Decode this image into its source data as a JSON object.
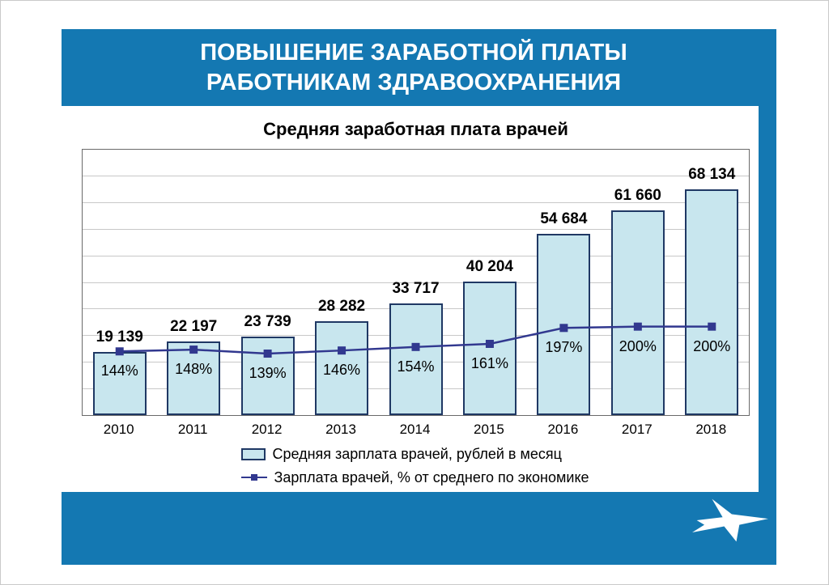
{
  "slide": {
    "title_line1": "ПОВЫШЕНИЕ ЗАРАБОТНОЙ ПЛАТЫ",
    "title_line2": "РАБОТНИКАМ ЗДРАВООХРАНЕНИЯ"
  },
  "colors": {
    "band_blue": "#1478b2",
    "bar_fill": "#c8e6ee",
    "bar_border": "#1f3864",
    "line_color": "#31388f",
    "grid_color": "#c8c8c8",
    "plot_border": "#6a6a6a",
    "text_color": "#000000"
  },
  "chart_data": {
    "type": "bar",
    "title": "Средняя заработная плата врачей",
    "categories": [
      "2010",
      "2011",
      "2012",
      "2013",
      "2014",
      "2015",
      "2016",
      "2017",
      "2018"
    ],
    "series": [
      {
        "name": "Средняя зарплата врачей, рублей в месяц",
        "type": "bar",
        "axis": "left",
        "values": [
          19139,
          22197,
          23739,
          28282,
          33717,
          40204,
          54684,
          61660,
          68134
        ],
        "labels": [
          "19 139",
          "22 197",
          "23 739",
          "28 282",
          "33 717",
          "40 204",
          "54 684",
          "61 660",
          "68 134"
        ]
      },
      {
        "name": "Зарплата врачей, % от среднего по экономике",
        "type": "line",
        "axis": "right",
        "values": [
          144,
          148,
          139,
          146,
          154,
          161,
          197,
          200,
          200
        ],
        "labels": [
          "144%",
          "148%",
          "139%",
          "146%",
          "154%",
          "161%",
          "197%",
          "200%",
          "200%"
        ]
      }
    ],
    "ylim": [
      0,
      80000
    ],
    "y2lim": [
      0,
      600
    ],
    "grid": true,
    "legend_position": "bottom"
  }
}
